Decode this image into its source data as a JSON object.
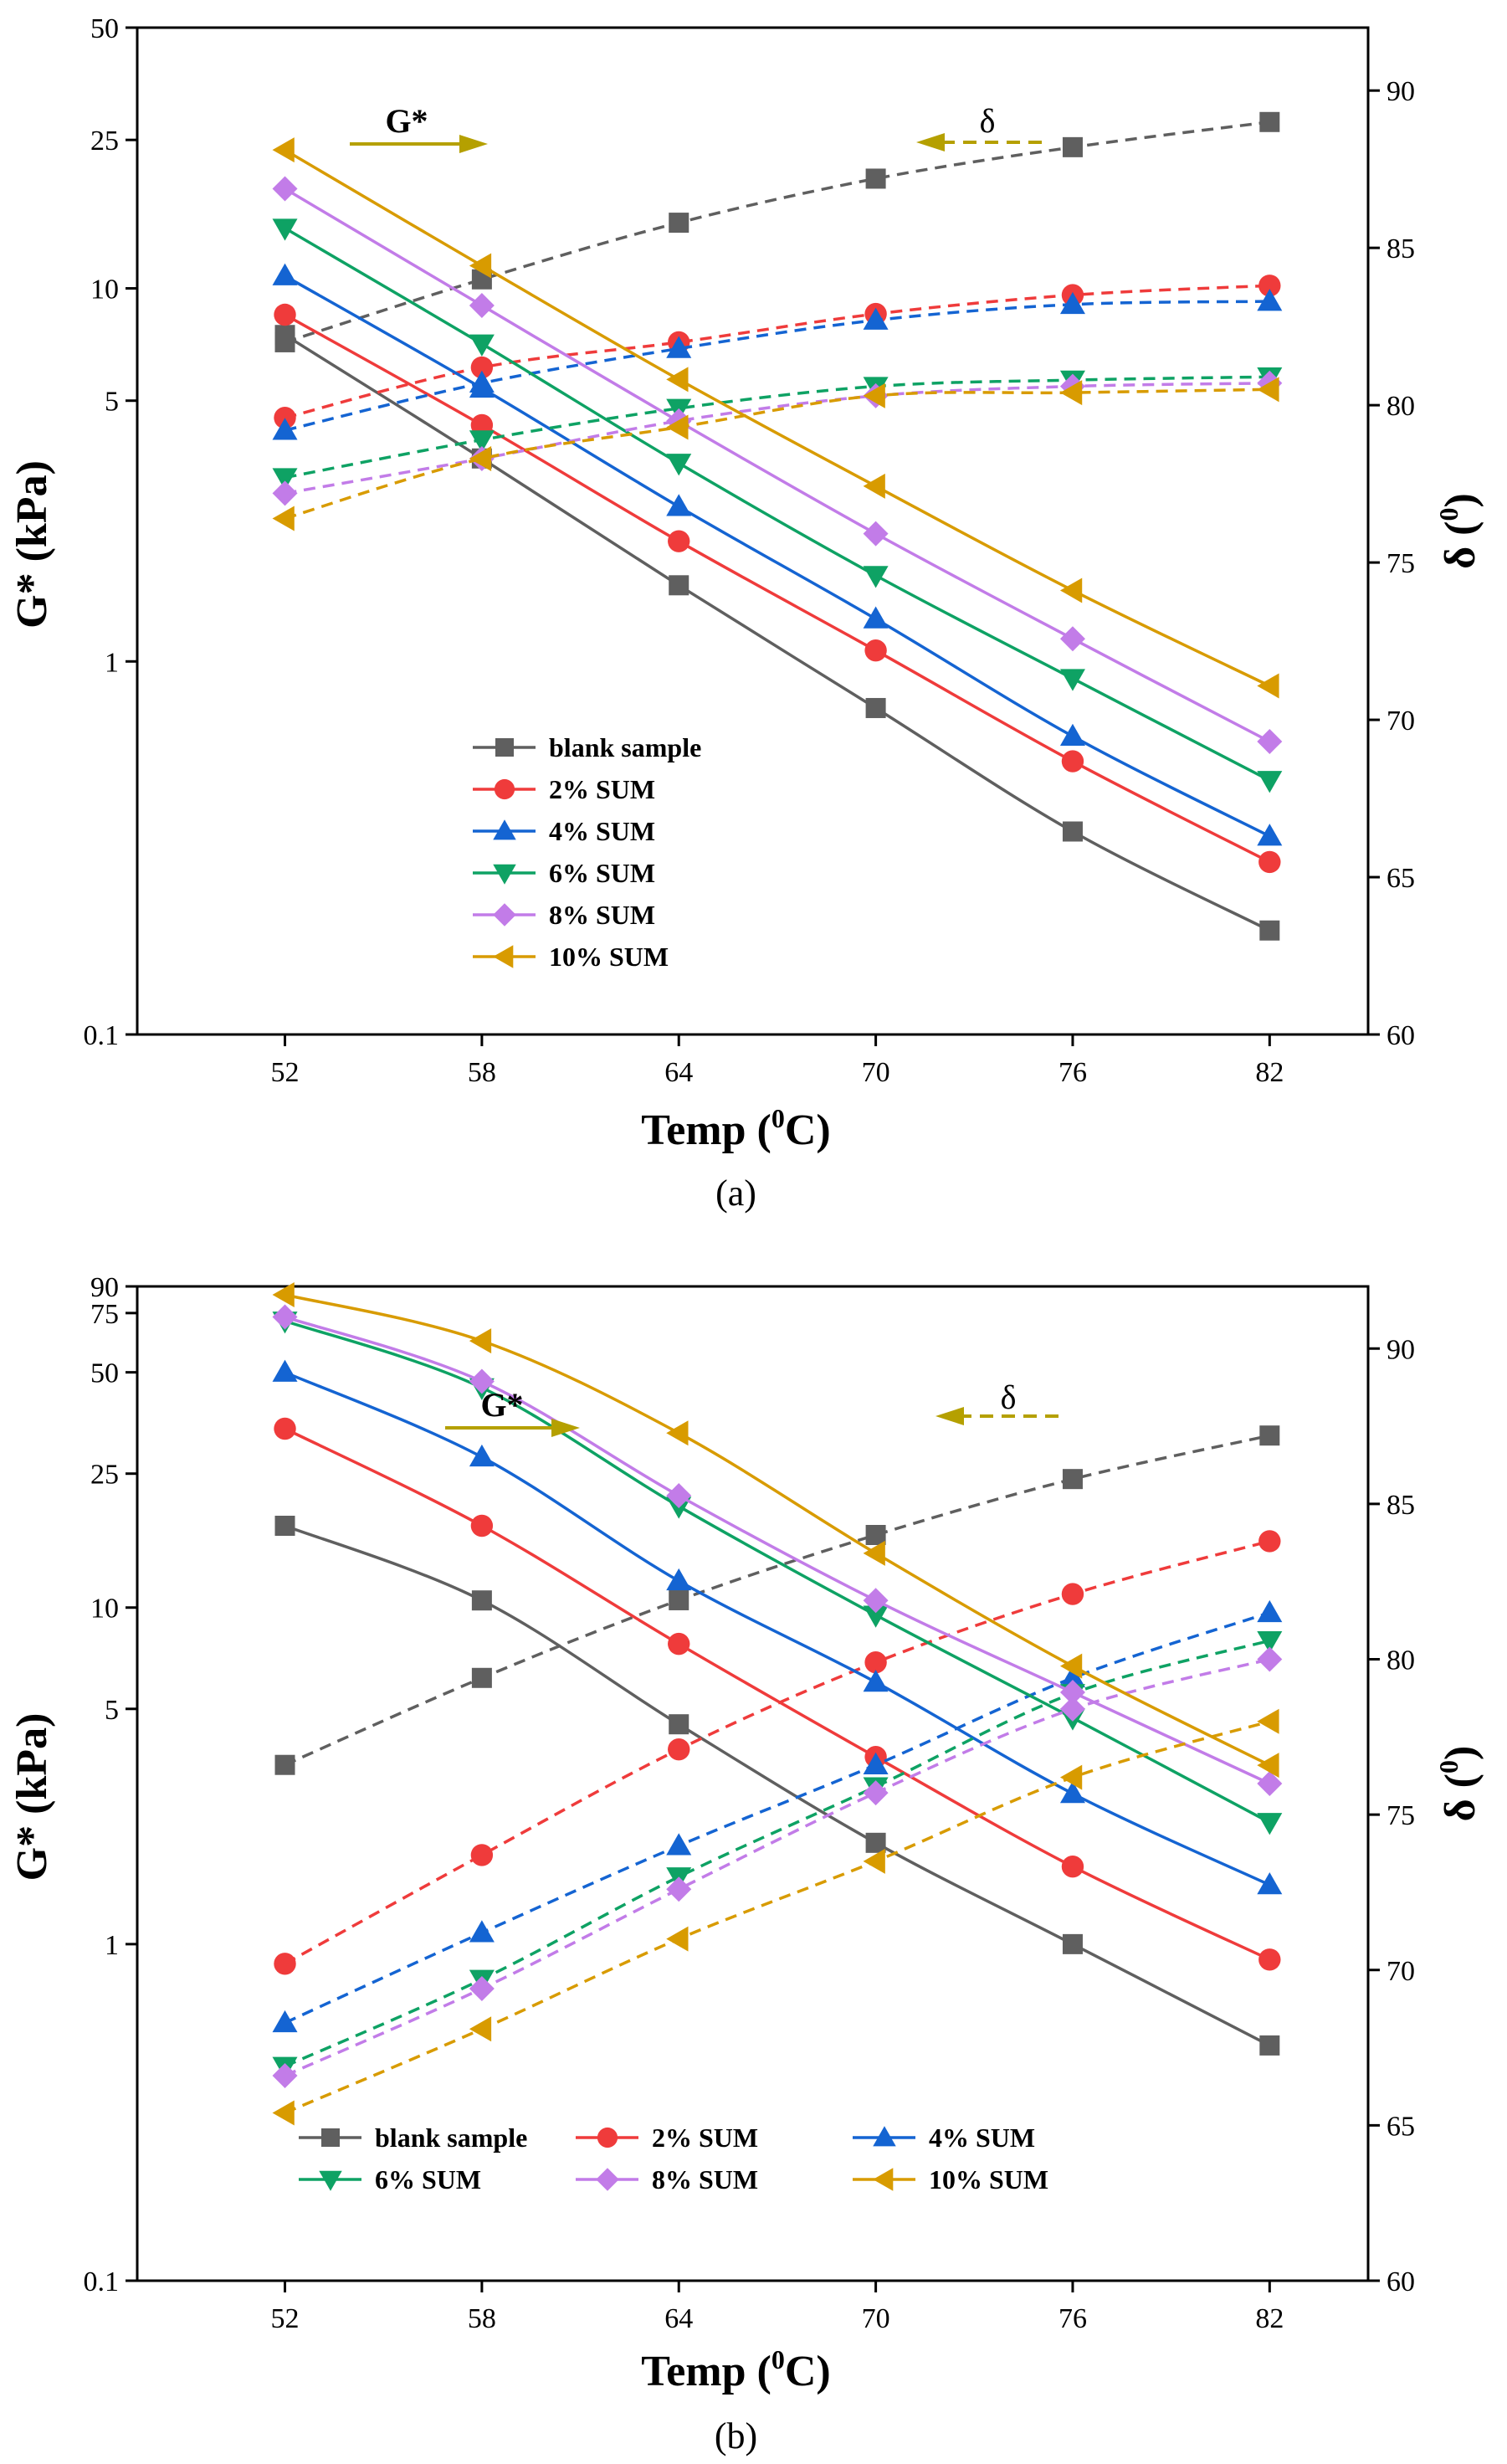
{
  "chart_data": [
    {
      "type": "line",
      "panel_label": "(a)",
      "xlabel": "Temp (0C)",
      "xlabel_main": "Temp (",
      "xlabel_sup": "0",
      "xlabel_tail": "C)",
      "ylabel_left": "G* (kPa)",
      "ylabel_right_main": "δ (",
      "ylabel_right_sup": "0",
      "ylabel_right_tail": ")",
      "x": [
        52,
        58,
        64,
        70,
        76,
        82
      ],
      "x_ticks": [
        "52",
        "58",
        "64",
        "70",
        "76",
        "82"
      ],
      "xlim": [
        47.5,
        85
      ],
      "y_left_scale": "log",
      "y_left_range": [
        0.1,
        50
      ],
      "y_left_ticks": [
        0.1,
        1,
        5,
        10,
        25,
        50
      ],
      "y_left_tick_labels": [
        "0.1",
        "1",
        "5",
        "10",
        "25",
        "50"
      ],
      "y_right_range": [
        60,
        92
      ],
      "y_right_ticks": [
        60,
        65,
        70,
        75,
        80,
        85,
        90
      ],
      "y_right_tick_labels": [
        "60",
        "65",
        "70",
        "75",
        "80",
        "85",
        "90"
      ],
      "annotation_gstar": "G*",
      "annotation_delta": "δ",
      "legend_position": "lower-center",
      "legend_columns": 1,
      "series": [
        {
          "name": "blank sample",
          "color": "#5f5f5f",
          "marker": "square",
          "gstar": [
            7.5,
            3.5,
            1.6,
            0.75,
            0.35,
            0.19
          ],
          "delta": [
            82.0,
            84.0,
            85.8,
            87.2,
            88.2,
            89.0
          ]
        },
        {
          "name": "2% SUM",
          "color": "#ef3b3b",
          "marker": "circle",
          "gstar": [
            8.5,
            4.3,
            2.1,
            1.07,
            0.54,
            0.29
          ],
          "delta": [
            79.6,
            81.2,
            82.0,
            82.9,
            83.5,
            83.8
          ]
        },
        {
          "name": "4% SUM",
          "color": "#1464d2",
          "marker": "triangle-up",
          "gstar": [
            10.8,
            5.4,
            2.6,
            1.3,
            0.63,
            0.34
          ],
          "delta": [
            79.2,
            80.7,
            81.8,
            82.7,
            83.2,
            83.3
          ]
        },
        {
          "name": "6% SUM",
          "color": "#0ea264",
          "marker": "triangle-down",
          "gstar": [
            14.5,
            7.1,
            3.4,
            1.7,
            0.9,
            0.48
          ],
          "delta": [
            77.7,
            78.9,
            79.9,
            80.6,
            80.8,
            80.9
          ]
        },
        {
          "name": "8% SUM",
          "color": "#c27ce8",
          "marker": "diamond",
          "gstar": [
            18.5,
            9.0,
            4.4,
            2.2,
            1.15,
            0.61
          ],
          "delta": [
            77.2,
            78.3,
            79.5,
            80.3,
            80.6,
            80.7
          ]
        },
        {
          "name": "10% SUM",
          "color": "#d89b00",
          "marker": "triangle-left",
          "gstar": [
            23.5,
            11.5,
            5.7,
            2.95,
            1.55,
            0.86
          ],
          "delta": [
            76.4,
            78.3,
            79.3,
            80.3,
            80.4,
            80.5
          ]
        }
      ]
    },
    {
      "type": "line",
      "panel_label": "(b)",
      "xlabel": "Temp (0C)",
      "xlabel_main": "Temp (",
      "xlabel_sup": "0",
      "xlabel_tail": "C)",
      "ylabel_left": "G* (kPa)",
      "ylabel_right_main": "δ (",
      "ylabel_right_sup": "0",
      "ylabel_right_tail": ")",
      "x": [
        52,
        58,
        64,
        70,
        76,
        82
      ],
      "x_ticks": [
        "52",
        "58",
        "64",
        "70",
        "76",
        "82"
      ],
      "xlim": [
        47.5,
        85
      ],
      "y_left_scale": "log",
      "y_left_range": [
        0.1,
        90
      ],
      "y_left_ticks": [
        0.1,
        1,
        5,
        10,
        25,
        50,
        75,
        90
      ],
      "y_left_tick_labels": [
        "0.1",
        "1",
        "5",
        "10",
        "25",
        "50",
        "75",
        "90"
      ],
      "y_right_range": [
        60,
        92
      ],
      "y_right_ticks": [
        60,
        65,
        70,
        75,
        80,
        85,
        90
      ],
      "y_right_tick_labels": [
        "60",
        "65",
        "70",
        "75",
        "80",
        "85",
        "90"
      ],
      "annotation_gstar": "G*",
      "annotation_delta": "δ",
      "legend_position": "lower-center",
      "legend_columns": 3,
      "series": [
        {
          "name": "blank sample",
          "color": "#5f5f5f",
          "marker": "square",
          "gstar": [
            17.5,
            10.5,
            4.5,
            2.0,
            1.0,
            0.5
          ],
          "delta": [
            76.6,
            79.4,
            81.9,
            84.0,
            85.8,
            87.2
          ]
        },
        {
          "name": "2% SUM",
          "color": "#ef3b3b",
          "marker": "circle",
          "gstar": [
            34,
            17.5,
            7.8,
            3.6,
            1.7,
            0.9
          ],
          "delta": [
            70.2,
            73.7,
            77.1,
            79.9,
            82.1,
            83.8
          ]
        },
        {
          "name": "4% SUM",
          "color": "#1464d2",
          "marker": "triangle-up",
          "gstar": [
            50,
            28,
            12,
            6.0,
            2.8,
            1.5
          ],
          "delta": [
            68.3,
            71.2,
            74.0,
            76.6,
            79.4,
            81.5
          ]
        },
        {
          "name": "6% SUM",
          "color": "#0ea264",
          "marker": "triangle-down",
          "gstar": [
            71,
            45,
            20,
            9.5,
            4.7,
            2.3
          ],
          "delta": [
            66.9,
            69.7,
            73.0,
            75.9,
            78.9,
            80.6
          ]
        },
        {
          "name": "8% SUM",
          "color": "#c27ce8",
          "marker": "diamond",
          "gstar": [
            73,
            47,
            21.5,
            10.5,
            5.6,
            3.0
          ],
          "delta": [
            66.6,
            69.4,
            72.6,
            75.7,
            78.4,
            80.0
          ]
        },
        {
          "name": "10% SUM",
          "color": "#d89b00",
          "marker": "triangle-left",
          "gstar": [
            85,
            62,
            33,
            14.5,
            6.7,
            3.4
          ],
          "delta": [
            65.4,
            68.1,
            71.0,
            73.5,
            76.2,
            78.0
          ]
        }
      ]
    }
  ]
}
